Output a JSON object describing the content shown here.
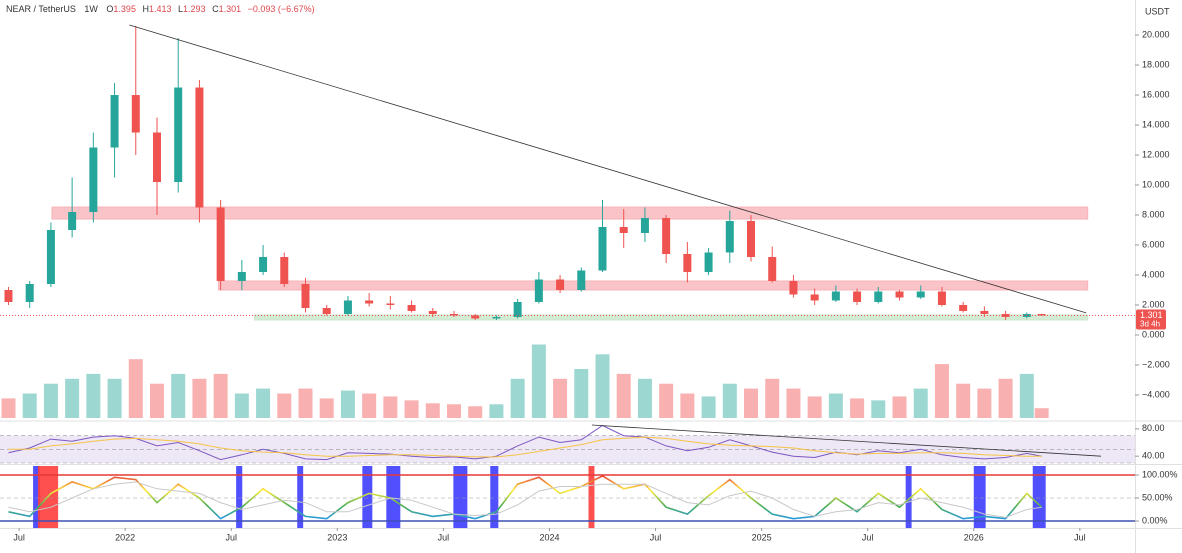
{
  "header": {
    "symbol": "NEAR / TetherUS",
    "interval": "1W",
    "ohlc": [
      {
        "label": "O",
        "value": 1.395
      },
      {
        "label": "H",
        "value": 1.413
      },
      {
        "label": "L",
        "value": 1.293
      },
      {
        "label": "C",
        "value": 1.301
      }
    ],
    "change": "−0.093 (−6.67%)"
  },
  "chart_data": [
    {
      "type": "candlestick",
      "axis_unit": "USDT",
      "countdown": "3d 4h",
      "xlim": [
        2021.41,
        2026.76
      ],
      "ylim": [
        -5.67,
        20.87
      ],
      "yticks": [
        {
          "value": -4,
          "label": "−4.000"
        },
        {
          "value": -2,
          "label": "−2.000"
        },
        {
          "value": 0,
          "label": "0.000"
        },
        {
          "value": 2,
          "label": "2.000"
        },
        {
          "value": 4,
          "label": "4.000"
        },
        {
          "value": 6,
          "label": "6.000"
        },
        {
          "value": 8,
          "label": "8.000"
        },
        {
          "value": 10,
          "label": "10.000"
        },
        {
          "value": 12,
          "label": "12.000"
        },
        {
          "value": 14,
          "label": "14.000"
        },
        {
          "value": 16,
          "label": "16.000"
        },
        {
          "value": 18,
          "label": "18.000"
        },
        {
          "value": 20,
          "label": "20.000"
        }
      ],
      "up_color": "#26a69a",
      "down_color": "#ef5350",
      "x": [
        2021.45,
        2021.55,
        2021.65,
        2021.75,
        2021.85,
        2021.95,
        2022.05,
        2022.15,
        2022.25,
        2022.35,
        2022.45,
        2022.55,
        2022.65,
        2022.75,
        2022.85,
        2022.95,
        2023.05,
        2023.15,
        2023.25,
        2023.35,
        2023.45,
        2023.55,
        2023.65,
        2023.75,
        2023.85,
        2023.95,
        2024.05,
        2024.15,
        2024.25,
        2024.35,
        2024.45,
        2024.55,
        2024.65,
        2024.75,
        2024.85,
        2024.95,
        2025.05,
        2025.15,
        2025.25,
        2025.35,
        2025.45,
        2025.55,
        2025.65,
        2025.75,
        2025.85,
        2025.95,
        2026.05,
        2026.15,
        2026.25,
        2026.32
      ],
      "ohlc": [
        [
          3.0,
          3.2,
          2.0,
          2.2
        ],
        [
          2.2,
          3.6,
          1.8,
          3.4
        ],
        [
          3.4,
          7.5,
          3.2,
          7.0
        ],
        [
          7.0,
          10.5,
          6.5,
          8.2
        ],
        [
          8.2,
          13.5,
          7.5,
          12.5
        ],
        [
          12.5,
          16.8,
          10.5,
          16.0
        ],
        [
          16.0,
          20.6,
          12.0,
          13.5
        ],
        [
          13.5,
          14.5,
          8.0,
          10.2
        ],
        [
          10.2,
          19.8,
          9.5,
          16.5
        ],
        [
          16.5,
          17.0,
          7.5,
          8.5
        ],
        [
          8.5,
          9.0,
          3.0,
          3.6
        ],
        [
          3.6,
          5.0,
          3.0,
          4.2
        ],
        [
          4.2,
          6.0,
          4.0,
          5.2
        ],
        [
          5.2,
          5.5,
          3.2,
          3.4
        ],
        [
          3.4,
          3.8,
          1.5,
          1.8
        ],
        [
          1.8,
          2.0,
          1.3,
          1.4
        ],
        [
          1.4,
          2.6,
          1.3,
          2.3
        ],
        [
          2.3,
          2.8,
          1.9,
          2.1
        ],
        [
          2.1,
          2.6,
          1.7,
          2.0
        ],
        [
          2.0,
          2.3,
          1.5,
          1.6
        ],
        [
          1.6,
          1.8,
          1.2,
          1.4
        ],
        [
          1.4,
          1.6,
          1.2,
          1.3
        ],
        [
          1.3,
          1.4,
          1.0,
          1.1
        ],
        [
          1.1,
          1.3,
          1.0,
          1.2
        ],
        [
          1.2,
          2.4,
          1.1,
          2.2
        ],
        [
          2.2,
          4.2,
          2.1,
          3.7
        ],
        [
          3.7,
          4.0,
          2.8,
          3.0
        ],
        [
          3.0,
          4.5,
          2.9,
          4.3
        ],
        [
          4.3,
          9.0,
          4.2,
          7.2
        ],
        [
          7.2,
          8.4,
          5.8,
          6.8
        ],
        [
          6.8,
          8.5,
          6.2,
          7.8
        ],
        [
          7.8,
          8.0,
          4.8,
          5.4
        ],
        [
          5.4,
          6.2,
          3.5,
          4.2
        ],
        [
          4.2,
          5.8,
          4.0,
          5.5
        ],
        [
          5.5,
          8.3,
          4.8,
          7.6
        ],
        [
          7.6,
          8.0,
          4.9,
          5.2
        ],
        [
          5.2,
          5.9,
          3.5,
          3.6
        ],
        [
          3.6,
          4.0,
          2.5,
          2.7
        ],
        [
          2.7,
          3.1,
          2.0,
          2.3
        ],
        [
          2.3,
          3.3,
          2.2,
          2.9
        ],
        [
          2.9,
          3.1,
          2.0,
          2.2
        ],
        [
          2.2,
          3.2,
          2.1,
          2.9
        ],
        [
          2.9,
          3.0,
          2.3,
          2.5
        ],
        [
          2.5,
          3.3,
          2.4,
          2.9
        ],
        [
          2.9,
          3.2,
          1.9,
          2.0
        ],
        [
          2.0,
          2.2,
          1.5,
          1.6
        ],
        [
          1.6,
          1.9,
          1.2,
          1.4
        ],
        [
          1.4,
          1.6,
          1.0,
          1.2
        ],
        [
          1.2,
          1.5,
          1.1,
          1.4
        ],
        [
          1.395,
          1.413,
          1.293,
          1.301
        ]
      ],
      "volume": [
        20,
        25,
        35,
        40,
        45,
        40,
        60,
        35,
        45,
        40,
        45,
        25,
        30,
        25,
        30,
        20,
        28,
        25,
        22,
        18,
        15,
        14,
        12,
        14,
        40,
        75,
        40,
        50,
        65,
        45,
        40,
        35,
        25,
        22,
        35,
        30,
        40,
        30,
        22,
        25,
        20,
        18,
        22,
        30,
        55,
        35,
        30,
        40,
        45,
        10
      ],
      "vlim": [
        0,
        100
      ],
      "trendline": {
        "x": [
          2022.02,
          2026.53
        ],
        "y": [
          20.67,
          1.47
        ],
        "color": "#333333"
      },
      "zones": [
        {
          "x": [
            2021.655,
            2026.537
          ],
          "y": [
            7.73,
            8.53
          ],
          "color": "#f7b4b9"
        },
        {
          "x": [
            2022.44,
            2026.537
          ],
          "y": [
            3.0,
            3.6
          ],
          "color": "#f7b4b9"
        },
        {
          "x": [
            2022.61,
            2026.537
          ],
          "y": [
            1.0,
            1.33
          ],
          "color": "#c8e6c9"
        }
      ]
    },
    {
      "type": "line",
      "xlim": [
        2021.41,
        2026.76
      ],
      "ylim": [
        30,
        88.6
      ],
      "yticks": [
        {
          "value": 40,
          "label": "40.00"
        },
        {
          "value": 80,
          "label": "80.00"
        }
      ],
      "band": [
        30,
        70
      ],
      "band_color": "#ede7f6",
      "midline": 50,
      "x": [
        2021.45,
        2021.55,
        2021.65,
        2021.75,
        2021.85,
        2021.95,
        2022.05,
        2022.15,
        2022.25,
        2022.35,
        2022.45,
        2022.55,
        2022.65,
        2022.75,
        2022.85,
        2022.95,
        2023.05,
        2023.15,
        2023.25,
        2023.35,
        2023.45,
        2023.55,
        2023.65,
        2023.75,
        2023.85,
        2023.95,
        2024.05,
        2024.15,
        2024.25,
        2024.35,
        2024.45,
        2024.55,
        2024.65,
        2024.75,
        2024.85,
        2024.95,
        2025.05,
        2025.15,
        2025.25,
        2025.35,
        2025.45,
        2025.55,
        2025.65,
        2025.75,
        2025.85,
        2025.95,
        2026.05,
        2026.15,
        2026.25,
        2026.32
      ],
      "series": [
        {
          "color": "#7e57c2",
          "values": [
            45,
            52,
            65,
            62,
            68,
            70,
            66,
            55,
            60,
            48,
            35,
            42,
            50,
            44,
            36,
            35,
            45,
            44,
            43,
            40,
            38,
            39,
            36,
            40,
            55,
            68,
            60,
            64,
            85,
            70,
            68,
            55,
            48,
            53,
            64,
            55,
            46,
            40,
            38,
            46,
            42,
            48,
            45,
            50,
            42,
            38,
            36,
            38,
            44,
            40
          ]
        },
        {
          "color": "#f6c445",
          "values": [
            50,
            50,
            55,
            58,
            62,
            65,
            66,
            64,
            62,
            58,
            52,
            48,
            46,
            45,
            42,
            40,
            40,
            41,
            42,
            42,
            41,
            40,
            39,
            39,
            42,
            47,
            52,
            57,
            64,
            66,
            68,
            66,
            62,
            58,
            56,
            55,
            54,
            52,
            48,
            45,
            43,
            44,
            44,
            45,
            45,
            44,
            42,
            41,
            40,
            40
          ]
        }
      ],
      "trendline": {
        "x": [
          2024.2,
          2026.6
        ],
        "y": [
          85.7,
          40
        ],
        "color": "#333333"
      }
    },
    {
      "type": "line",
      "xlim": [
        2021.41,
        2026.76
      ],
      "ylim": [
        -15.2,
        119.6
      ],
      "yticks": [
        {
          "value": 0,
          "label": "0.00%"
        },
        {
          "value": 50,
          "label": "50.00%"
        },
        {
          "value": 100,
          "label": "100.00%"
        }
      ],
      "xticks": [
        {
          "value": 2021.5,
          "label": "Jul"
        },
        {
          "value": 2022,
          "label": "2022"
        },
        {
          "value": 2022.5,
          "label": "Jul"
        },
        {
          "value": 2023,
          "label": "2023"
        },
        {
          "value": 2023.5,
          "label": "Jul"
        },
        {
          "value": 2024,
          "label": "2024"
        },
        {
          "value": 2024.5,
          "label": "Jul"
        },
        {
          "value": 2025,
          "label": "2025"
        },
        {
          "value": 2025.5,
          "label": "Jul"
        },
        {
          "value": 2026,
          "label": "2026"
        },
        {
          "value": 2026.5,
          "label": "Jul"
        }
      ],
      "upper_line": {
        "value": 100,
        "color": "#e53935"
      },
      "lower_line": {
        "value": 0,
        "color": "#3f51b5"
      },
      "midline": 50,
      "highlights": [
        {
          "x": [
            2021.566,
            2021.599
          ],
          "color": "#3d3dff"
        },
        {
          "x": [
            2021.589,
            2021.684
          ],
          "color": "#ff3d3d"
        },
        {
          "x": [
            2022.523,
            2022.552
          ],
          "color": "#3d3dff"
        },
        {
          "x": [
            2022.811,
            2022.839
          ],
          "color": "#3d3dff"
        },
        {
          "x": [
            2023.118,
            2023.165
          ],
          "color": "#3d3dff"
        },
        {
          "x": [
            2023.231,
            2023.297
          ],
          "color": "#3d3dff"
        },
        {
          "x": [
            2023.547,
            2023.613
          ],
          "color": "#3d3dff"
        },
        {
          "x": [
            2023.721,
            2023.759
          ],
          "color": "#3d3dff"
        },
        {
          "x": [
            2024.184,
            2024.212
          ],
          "color": "#ff3d3d"
        },
        {
          "x": [
            2025.679,
            2025.707
          ],
          "color": "#3d3dff"
        },
        {
          "x": [
            2026.0,
            2026.056
          ],
          "color": "#3d3dff"
        },
        {
          "x": [
            2026.278,
            2026.339
          ],
          "color": "#3d3dff"
        }
      ],
      "x": [
        2021.45,
        2021.55,
        2021.65,
        2021.75,
        2021.85,
        2021.95,
        2022.05,
        2022.15,
        2022.25,
        2022.35,
        2022.45,
        2022.55,
        2022.65,
        2022.75,
        2022.85,
        2022.95,
        2023.05,
        2023.15,
        2023.25,
        2023.35,
        2023.45,
        2023.55,
        2023.65,
        2023.75,
        2023.85,
        2023.95,
        2024.05,
        2024.15,
        2024.25,
        2024.35,
        2024.45,
        2024.55,
        2024.65,
        2024.75,
        2024.85,
        2024.95,
        2025.05,
        2025.15,
        2025.25,
        2025.35,
        2025.45,
        2025.55,
        2025.65,
        2025.75,
        2025.85,
        2025.95,
        2026.05,
        2026.15,
        2026.25,
        2026.32
      ],
      "series": [
        {
          "colors": [
            "#e53935",
            "#ffeb3b",
            "#4caf50",
            "#2196f3"
          ],
          "values": [
            20,
            10,
            60,
            85,
            70,
            95,
            90,
            40,
            80,
            50,
            5,
            30,
            70,
            40,
            10,
            5,
            40,
            60,
            50,
            20,
            10,
            15,
            5,
            20,
            80,
            95,
            60,
            75,
            98,
            70,
            80,
            30,
            15,
            55,
            90,
            50,
            15,
            5,
            10,
            50,
            20,
            60,
            30,
            70,
            25,
            5,
            10,
            5,
            60,
            30
          ]
        },
        {
          "color": "#c8c8c8",
          "values": [
            30,
            20,
            30,
            50,
            70,
            80,
            85,
            70,
            65,
            60,
            40,
            25,
            35,
            45,
            40,
            20,
            20,
            35,
            50,
            45,
            30,
            15,
            12,
            15,
            35,
            65,
            75,
            75,
            80,
            80,
            80,
            60,
            40,
            35,
            55,
            65,
            50,
            25,
            10,
            20,
            25,
            40,
            35,
            50,
            40,
            30,
            15,
            8,
            25,
            30
          ]
        }
      ]
    }
  ]
}
